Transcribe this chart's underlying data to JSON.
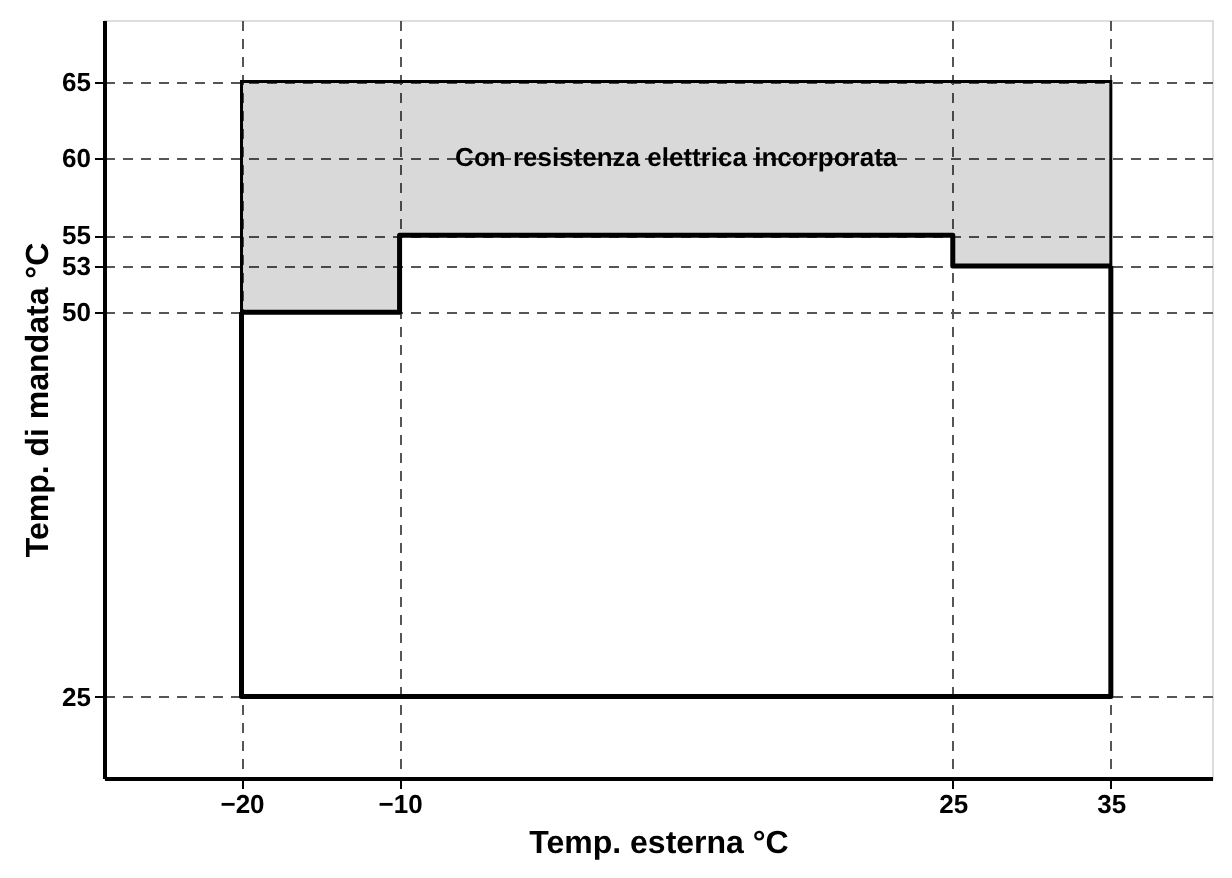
{
  "chart_data": {
    "type": "line",
    "xlabel": "Temp. esterna °C",
    "ylabel": "Temp. di mandata °C",
    "xlim": [
      -28.7,
      41.4
    ],
    "ylim": [
      19.7,
      69
    ],
    "xticks": [
      -20,
      -10,
      25,
      35
    ],
    "yticks": [
      25,
      50,
      53,
      55,
      60,
      65
    ],
    "grid": true,
    "series": [
      {
        "color": "#000000",
        "x": [
          -20,
          -10,
          -10,
          25,
          25,
          35
        ],
        "values": [
          50,
          50,
          55,
          55,
          53,
          53
        ],
        "lower": [
          50,
          50,
          55,
          55,
          53,
          53
        ],
        "upper": [
          65,
          65,
          65,
          65,
          65,
          65
        ]
      },
      {
        "color": "#000000",
        "x": [
          -20,
          -20,
          35,
          35
        ],
        "values": [
          50,
          25,
          25,
          53
        ]
      }
    ],
    "annotations": [
      "Con resistenza elettrica incorporata"
    ]
  }
}
